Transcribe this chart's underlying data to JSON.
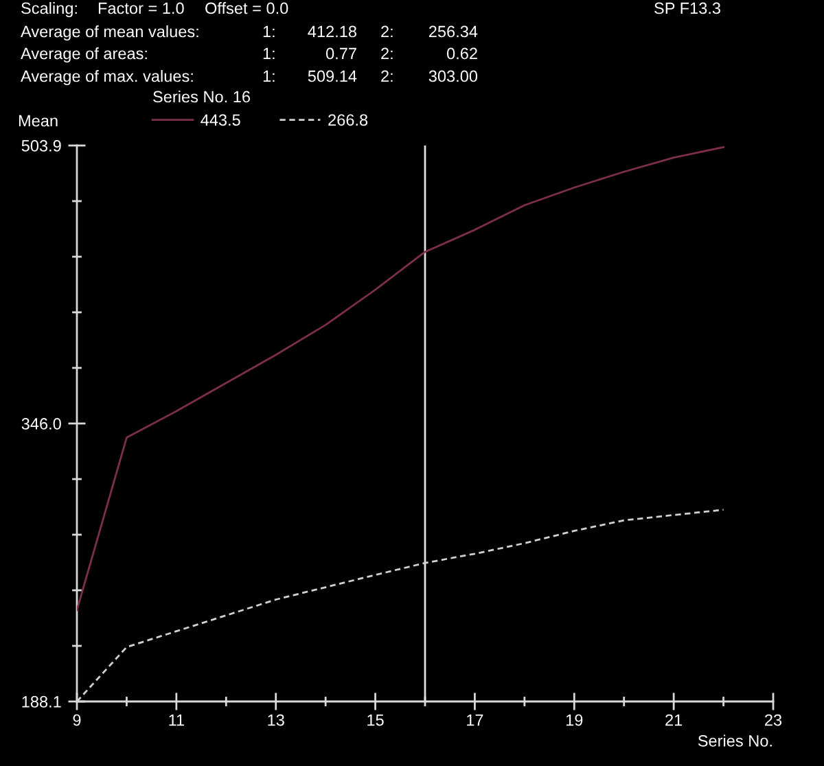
{
  "chart_data": {
    "type": "line",
    "x": [
      9,
      10,
      11,
      12,
      13,
      14,
      15,
      16,
      17,
      18,
      19,
      20,
      21,
      22
    ],
    "series": [
      {
        "name": "443.5",
        "color": "#7d2f45",
        "line_style": "solid",
        "values": [
          240,
          338,
          353,
          369,
          385,
          402,
          422,
          443.5,
          456,
          470,
          480,
          489,
          497,
          503
        ]
      },
      {
        "name": "266.8",
        "color": "#d0d0d0",
        "line_style": "dashed",
        "values": [
          188.1,
          219,
          228,
          237,
          246,
          253,
          260,
          266.8,
          272,
          278,
          285,
          291,
          294,
          297
        ]
      }
    ],
    "xlabel": "Series No.",
    "ylabel": "Mean",
    "legend_title": "Series No. 16",
    "legend": "top",
    "xlim": [
      9,
      23
    ],
    "ylim": [
      188.1,
      503.9
    ],
    "xticks": [
      9,
      {
        "value": 10,
        "label": null
      },
      11,
      {
        "value": 12,
        "label": null
      },
      13,
      {
        "value": 14,
        "label": null
      },
      15,
      {
        "value": 16,
        "label": null
      },
      17,
      {
        "value": 18,
        "label": null
      },
      19,
      {
        "value": 20,
        "label": null
      },
      21,
      {
        "value": 22,
        "label": null
      },
      23
    ],
    "yticks": [
      188.1,
      {
        "value": 219.68,
        "label": null
      },
      {
        "value": 251.26,
        "label": null
      },
      {
        "value": 282.84,
        "label": null
      },
      {
        "value": 314.42,
        "label": null
      },
      {
        "value": 346,
        "label": "346.0"
      },
      {
        "value": 377.58,
        "label": null
      },
      {
        "value": 409.16,
        "label": null
      },
      {
        "value": 440.74,
        "label": null
      },
      {
        "value": 472.32,
        "label": null
      },
      503.9
    ],
    "ref_lines": [
      {
        "axis": "x",
        "value": 16,
        "color": "#e0e0e0"
      }
    ],
    "annotations": [
      "Scaling:",
      "Factor = 1.0",
      "Offset = 0.0",
      "SP F13.3",
      "Average of mean values:",
      "1:",
      "412.18",
      "2:",
      "256.34",
      "Average of areas:",
      "1:",
      "0.77",
      "2:",
      "0.62",
      "Average of max. values:",
      "1:",
      "509.14",
      "2:",
      "303.00"
    ]
  }
}
